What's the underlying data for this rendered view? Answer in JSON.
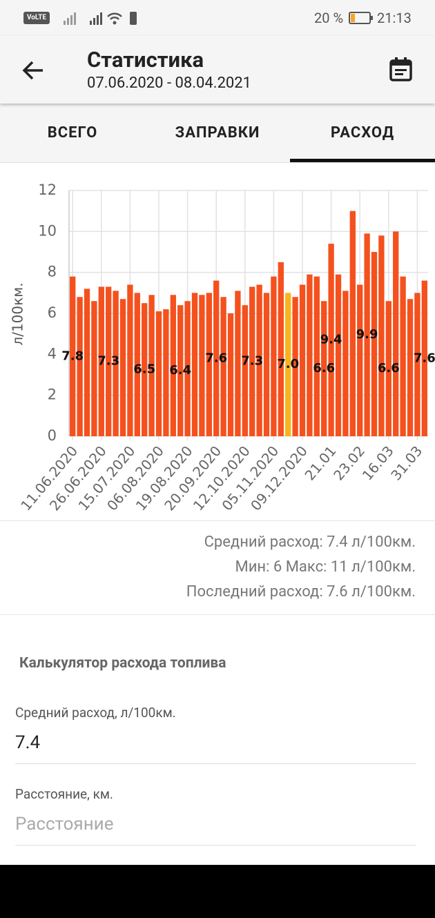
{
  "status_bar": {
    "volte": "VoLTE",
    "battery": "20 %",
    "time": "21:13"
  },
  "header": {
    "title": "Статистика",
    "subtitle": "07.06.2020 - 08.04.2021"
  },
  "tabs": [
    "ВСЕГО",
    "ЗАПРАВКИ",
    "РАСХОД"
  ],
  "chart_data": {
    "type": "bar",
    "y_label": "л/100км.",
    "categories": [
      "11.06.2020",
      null,
      null,
      null,
      "26.06.2020",
      null,
      null,
      null,
      "15.07.2020",
      null,
      null,
      null,
      "06.08.2020",
      null,
      null,
      null,
      "19.08.2020",
      null,
      null,
      null,
      "20.09.2020",
      null,
      null,
      null,
      "12.10.2020",
      null,
      null,
      null,
      "05.11.2020",
      null,
      null,
      null,
      "09.12.2020",
      null,
      null,
      null,
      "21.01",
      null,
      null,
      null,
      "23.02",
      null,
      null,
      null,
      "16.03",
      null,
      null,
      null,
      "31.03",
      null
    ],
    "values": [
      7.8,
      6.8,
      7.2,
      6.6,
      7.3,
      7.3,
      7.1,
      6.7,
      7.4,
      7.0,
      6.5,
      6.9,
      6.1,
      6.2,
      6.9,
      6.4,
      6.6,
      7.0,
      6.9,
      7.0,
      7.6,
      6.8,
      6.0,
      7.1,
      6.4,
      7.3,
      7.4,
      7.0,
      7.8,
      8.5,
      7.0,
      6.8,
      7.4,
      7.9,
      7.8,
      6.6,
      9.4,
      7.9,
      7.1,
      11.0,
      7.4,
      9.9,
      9.0,
      9.8,
      6.6,
      10.0,
      7.8,
      6.7,
      7.0,
      7.6
    ],
    "value_labels": [
      "7.8",
      null,
      null,
      null,
      null,
      "7.3",
      null,
      null,
      null,
      null,
      "6.5",
      null,
      null,
      null,
      null,
      "6.4",
      null,
      null,
      null,
      null,
      "7.6",
      null,
      null,
      null,
      null,
      "7.3",
      null,
      null,
      null,
      null,
      "7.0",
      null,
      null,
      null,
      null,
      "6.6",
      "9.4",
      null,
      null,
      null,
      null,
      "9.9",
      null,
      null,
      "6.6",
      null,
      null,
      null,
      null,
      "7.6"
    ],
    "colors": [
      "#f4511e",
      "#f4511e",
      "#f4511e",
      "#f4511e",
      "#f4511e",
      "#f4511e",
      "#f4511e",
      "#f4511e",
      "#f4511e",
      "#f4511e",
      "#f4511e",
      "#f4511e",
      "#f4511e",
      "#f4511e",
      "#f4511e",
      "#f4511e",
      "#f4511e",
      "#f4511e",
      "#f4511e",
      "#f4511e",
      "#f4511e",
      "#f4511e",
      "#f4511e",
      "#f4511e",
      "#f4511e",
      "#f4511e",
      "#f4511e",
      "#f4511e",
      "#f4511e",
      "#f4511e",
      "#f9b41b",
      "#f4511e",
      "#f4511e",
      "#f4511e",
      "#f4511e",
      "#f4511e",
      "#f4511e",
      "#f4511e",
      "#f4511e",
      "#f4511e",
      "#f4511e",
      "#f4511e",
      "#f4511e",
      "#f4511e",
      "#f4511e",
      "#f4511e",
      "#f4511e",
      "#f4511e",
      "#f4511e",
      "#f4511e"
    ],
    "ylim": [
      0,
      12
    ],
    "yticks": [
      0,
      2,
      4,
      6,
      8,
      10,
      12
    ],
    "grid": true
  },
  "stats": [
    "Средний расход: 7.4 л/100км.",
    "Мин: 6 Макс: 11 л/100км.",
    "Последний расход: 7.6 л/100км."
  ],
  "calculator": {
    "title": "Калькулятор расхода топлива",
    "fields": [
      {
        "label": "Средний расход, л/100км.",
        "value": "7.4"
      },
      {
        "label": "Расстояние, км.",
        "placeholder": "Расстояние"
      }
    ]
  }
}
